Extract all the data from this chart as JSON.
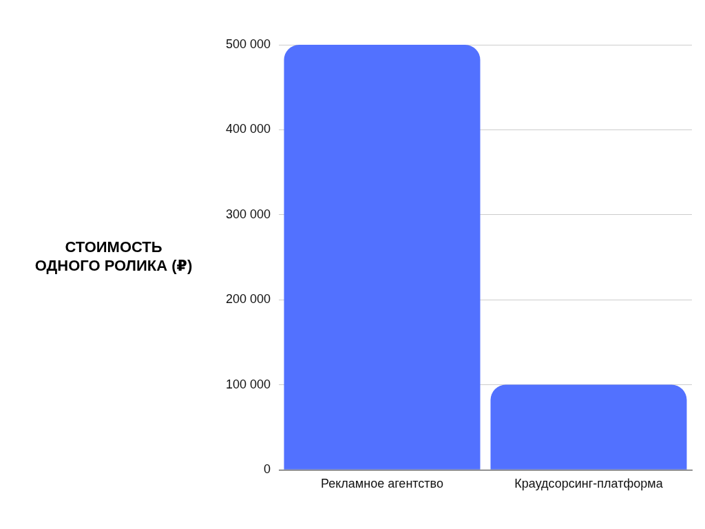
{
  "chart_data": {
    "type": "bar",
    "ylabel": "СТОИМОСТЬ\nОДНОГО РОЛИКА (₽)",
    "categories": [
      "Рекламное агентство",
      "Краудсорсинг-платформа"
    ],
    "values": [
      500000,
      100000
    ],
    "color": "#5271ff",
    "ylim": [
      0,
      500000
    ],
    "yticks": [
      {
        "value": 0,
        "label": "0"
      },
      {
        "value": 100000,
        "label": "100 000"
      },
      {
        "value": 200000,
        "label": "200 000"
      },
      {
        "value": 300000,
        "label": "300 000"
      },
      {
        "value": 400000,
        "label": "400 000"
      },
      {
        "value": 500000,
        "label": "500 000"
      }
    ],
    "grid": "y",
    "legend": false
  }
}
